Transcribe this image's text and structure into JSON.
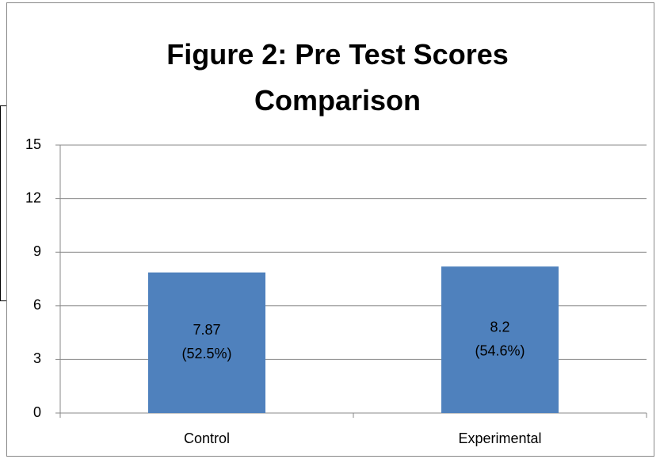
{
  "chart_data": {
    "type": "bar",
    "title": "Figure 2: Pre Test Scores Comparison",
    "categories": [
      "Control",
      "Experimental"
    ],
    "values": [
      7.87,
      8.2
    ],
    "value_labels": [
      [
        "7.87",
        "(52.5%)"
      ],
      [
        "8.2",
        "(54.6%)"
      ]
    ],
    "color": "#4f81bd",
    "ylim": [
      0,
      15
    ],
    "yticks": [
      0,
      3,
      6,
      9,
      12,
      15
    ],
    "grid": true
  }
}
